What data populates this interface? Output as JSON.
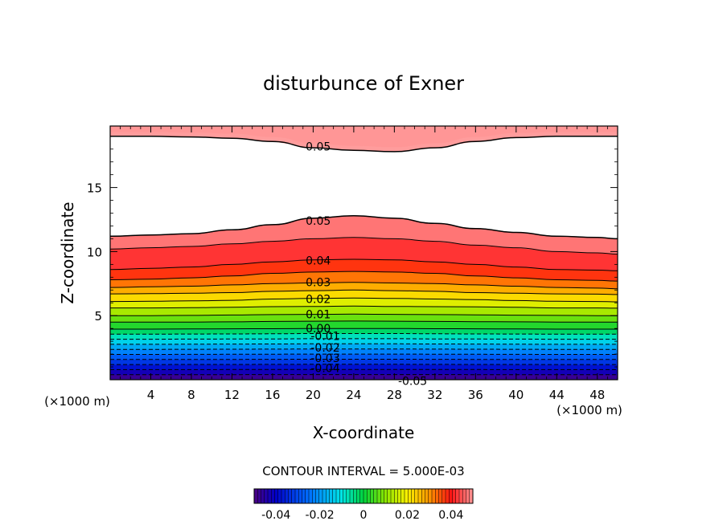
{
  "chart_data": {
    "type": "contour",
    "title": "disturbunce of Exner",
    "xlabel": "X-coordinate",
    "ylabel": "Z-coordinate",
    "x_unit_left": "(×1000 m)",
    "x_unit_right": "(×1000 m)",
    "xlim": [
      0,
      50
    ],
    "ylim": [
      0,
      19.8
    ],
    "x_ticks": [
      4,
      8,
      12,
      16,
      20,
      24,
      28,
      32,
      36,
      40,
      44,
      48
    ],
    "y_ticks": [
      5,
      10,
      15
    ],
    "contour_interval_text": "CONTOUR INTERVAL = 5.000E-03",
    "positive_levels": [
      0.0,
      0.005,
      0.01,
      0.015,
      0.02,
      0.025,
      0.03,
      0.035,
      0.04,
      0.045,
      0.05
    ],
    "negative_levels": [
      -0.005,
      -0.01,
      -0.015,
      -0.02,
      -0.025,
      -0.03,
      -0.035,
      -0.04,
      -0.045,
      -0.05
    ],
    "contour_heights": {
      "x": [
        0,
        4,
        8,
        12,
        16,
        20,
        24,
        28,
        32,
        36,
        40,
        44,
        48,
        50
      ],
      "c_0.050": [
        11.2,
        11.3,
        11.4,
        11.7,
        12.1,
        12.6,
        12.8,
        12.6,
        12.2,
        11.8,
        11.5,
        11.2,
        11.1,
        11.0
      ],
      "c_0.045": [
        10.2,
        10.3,
        10.4,
        10.6,
        10.8,
        11.0,
        11.1,
        11.0,
        10.8,
        10.5,
        10.3,
        10.0,
        9.9,
        9.8
      ],
      "c_0.040": [
        8.6,
        8.7,
        8.8,
        9.0,
        9.2,
        9.35,
        9.4,
        9.35,
        9.2,
        9.0,
        8.8,
        8.6,
        8.55,
        8.5
      ],
      "c_0.035": [
        7.8,
        7.85,
        7.95,
        8.1,
        8.3,
        8.4,
        8.45,
        8.4,
        8.3,
        8.1,
        7.95,
        7.8,
        7.75,
        7.7
      ],
      "c_0.030": [
        7.2,
        7.25,
        7.3,
        7.4,
        7.5,
        7.55,
        7.6,
        7.55,
        7.5,
        7.4,
        7.3,
        7.2,
        7.15,
        7.1
      ],
      "c_0.025": [
        6.7,
        6.72,
        6.75,
        6.8,
        6.9,
        6.95,
        7.0,
        6.95,
        6.9,
        6.8,
        6.75,
        6.7,
        6.68,
        6.65
      ],
      "c_0.020": [
        6.1,
        6.12,
        6.15,
        6.2,
        6.3,
        6.35,
        6.38,
        6.35,
        6.3,
        6.25,
        6.18,
        6.12,
        6.1,
        6.08
      ],
      "c_0.015": [
        5.6,
        5.6,
        5.62,
        5.65,
        5.7,
        5.72,
        5.75,
        5.72,
        5.7,
        5.68,
        5.65,
        5.6,
        5.6,
        5.58
      ],
      "c_0.010": [
        5.0,
        5.0,
        5.02,
        5.05,
        5.08,
        5.1,
        5.12,
        5.1,
        5.08,
        5.06,
        5.04,
        5.02,
        5.0,
        5.0
      ],
      "c_0.005": [
        4.5,
        4.5,
        4.5,
        4.52,
        4.55,
        4.57,
        4.58,
        4.57,
        4.55,
        4.53,
        4.52,
        4.5,
        4.5,
        4.5
      ],
      "c_0.000": [
        3.95,
        3.95,
        3.96,
        3.97,
        3.98,
        4.0,
        4.0,
        4.0,
        3.98,
        3.97,
        3.96,
        3.95,
        3.95,
        3.95
      ]
    },
    "upper_contour_0.050": [
      19.0,
      19.0,
      18.95,
      18.85,
      18.6,
      18.1,
      17.9,
      17.8,
      18.1,
      18.6,
      18.9,
      19.0,
      19.0,
      19.0
    ],
    "line_labels": [
      {
        "text": "0.05",
        "x": 20.5,
        "y": 18.2
      },
      {
        "text": "0.05",
        "x": 20.5,
        "y": 12.4
      },
      {
        "text": "0.04",
        "x": 20.5,
        "y": 9.3
      },
      {
        "text": "0.03",
        "x": 20.5,
        "y": 7.6
      },
      {
        "text": "0.02",
        "x": 20.5,
        "y": 6.3
      },
      {
        "text": "0.01",
        "x": 20.5,
        "y": 5.1
      },
      {
        "text": "0.00",
        "x": 20.5,
        "y": 4.0
      },
      {
        "text": "-0.01",
        "x": 21.2,
        "y": 3.4
      },
      {
        "text": "-0.02",
        "x": 21.2,
        "y": 2.5
      },
      {
        "text": "-0.03",
        "x": 21.2,
        "y": 1.7
      },
      {
        "text": "-0.04",
        "x": 21.2,
        "y": 0.9
      },
      {
        "text": "-0.05",
        "x": 29.8,
        "y": -0.1
      }
    ],
    "colorbar": {
      "range": [
        -0.05,
        0.05
      ],
      "tick_labels": [
        "-0.04",
        "-0.02",
        "0",
        "0.02",
        "0.04"
      ],
      "tick_values": [
        -0.04,
        -0.02,
        0,
        0.02,
        0.04
      ]
    }
  }
}
